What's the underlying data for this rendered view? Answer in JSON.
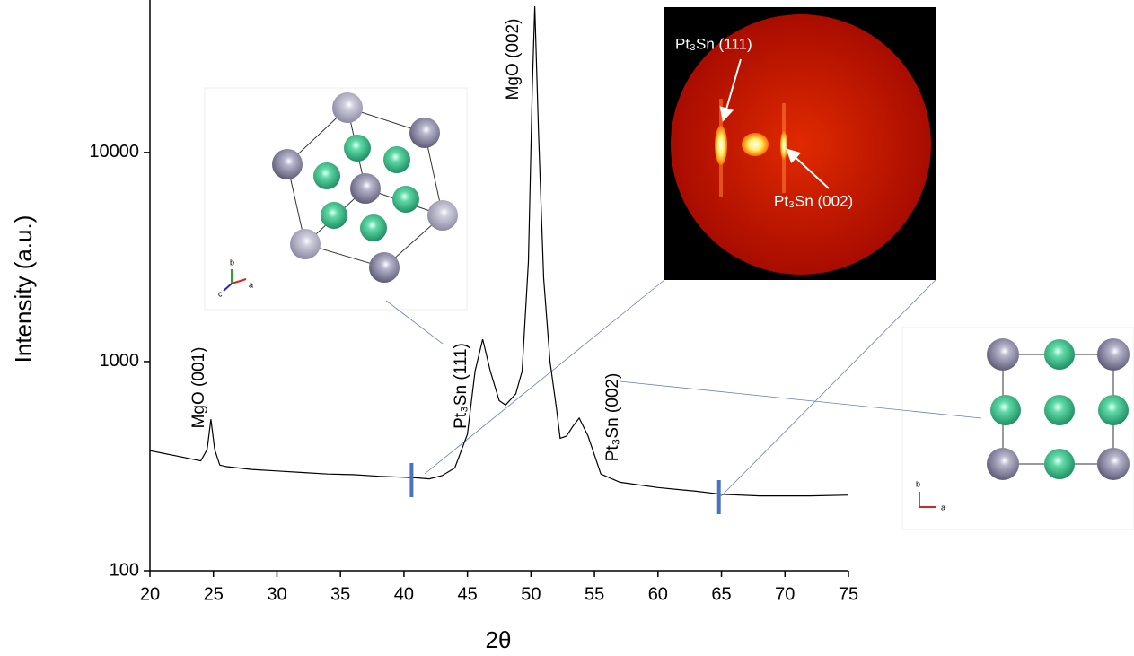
{
  "chart_data": {
    "type": "line",
    "xlabel": "2θ",
    "ylabel": "Intensity (a.u.)",
    "log_y": true,
    "grid": false,
    "color": "#000000",
    "xlim": [
      20,
      75
    ],
    "xticks": [
      20,
      25,
      30,
      35,
      40,
      45,
      50,
      55,
      60,
      65,
      70,
      75
    ],
    "ylim": [
      100,
      50000
    ],
    "yticks": [
      100,
      1000,
      10000
    ],
    "x": [
      20,
      21,
      22,
      23,
      24,
      24.5,
      24.8,
      25.1,
      25.5,
      26,
      28,
      30,
      32,
      34,
      36,
      38,
      40,
      41,
      42,
      43,
      44,
      45,
      45.6,
      46.2,
      46.8,
      47.5,
      48,
      48.8,
      49.3,
      49.8,
      50.1,
      50.3,
      50.6,
      51,
      51.5,
      52,
      52.3,
      52.8,
      53.3,
      53.8,
      54.5,
      55.5,
      57,
      60,
      63,
      65,
      68,
      72,
      75
    ],
    "values": [
      375,
      365,
      355,
      345,
      335,
      380,
      530,
      380,
      320,
      315,
      305,
      300,
      295,
      290,
      288,
      283,
      280,
      278,
      275,
      285,
      310,
      450,
      900,
      1280,
      900,
      650,
      620,
      700,
      900,
      3000,
      20000,
      50000,
      12000,
      2500,
      1000,
      600,
      430,
      440,
      490,
      537,
      440,
      290,
      265,
      250,
      240,
      232,
      228,
      228,
      230
    ],
    "annotations": [
      "MgO (001)",
      "Pt₃Sn (111)",
      "MgO (002)",
      "Pt₃Sn (002)"
    ],
    "markers": [
      40.6,
      64.8
    ],
    "inset_rheed_labels": [
      "Pt₃Sn (111)",
      "Pt₃Sn (002)"
    ],
    "inset_left_axes": [
      "b",
      "c",
      "a"
    ],
    "inset_right_axes": [
      "b",
      "a"
    ]
  }
}
